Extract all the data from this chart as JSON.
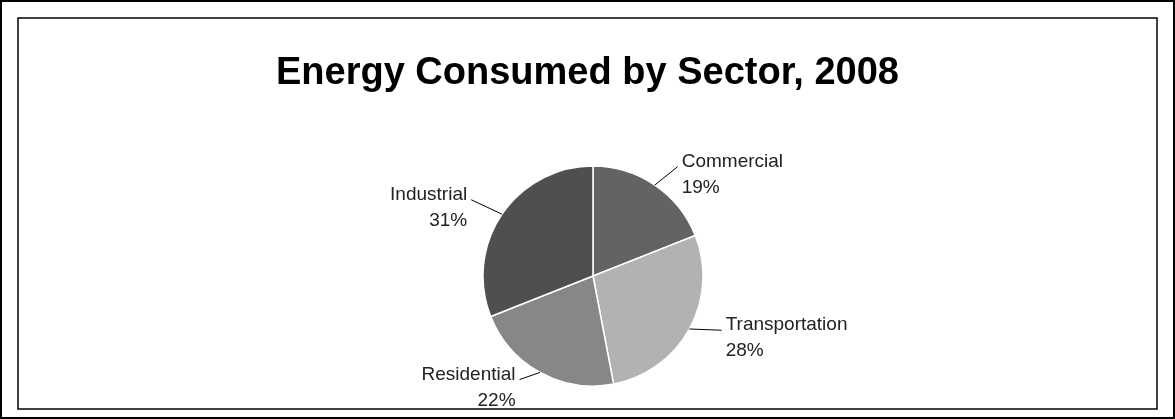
{
  "chart_data": {
    "type": "pie",
    "title": "Energy Consumed by Sector, 2008",
    "categories": [
      "Commercial",
      "Transportation",
      "Residential",
      "Industrial"
    ],
    "values": [
      19,
      28,
      22,
      31
    ],
    "colors": [
      "#636363",
      "#b2b2b2",
      "#878787",
      "#4f4f4f"
    ],
    "value_labels": [
      "19%",
      "28%",
      "22%",
      "31%"
    ]
  }
}
